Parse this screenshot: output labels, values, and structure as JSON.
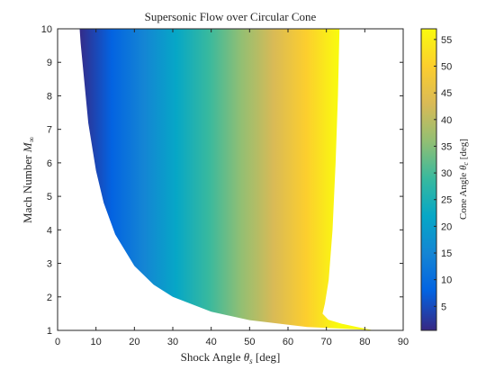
{
  "chart_data": {
    "type": "heatmap",
    "title": "Supersonic Flow over Circular Cone",
    "xlabel_main": "Shock Angle ",
    "xlabel_sym": "θ",
    "xlabel_sub": "s",
    "xlabel_unit": " [deg]",
    "ylabel_main": "Mach Number ",
    "ylabel_sym": "M",
    "ylabel_sub": "∞",
    "colorbar_label_main": "Cone Angle ",
    "colorbar_label_sym": "θ",
    "colorbar_label_sub": "c",
    "colorbar_label_unit": " [deg]",
    "xlim": [
      0,
      90
    ],
    "ylim": [
      1,
      10
    ],
    "xticks": [
      0,
      10,
      20,
      30,
      40,
      50,
      60,
      70,
      80,
      90
    ],
    "yticks": [
      1,
      2,
      3,
      4,
      5,
      6,
      7,
      8,
      9,
      10
    ],
    "colorbar_range": [
      0.5,
      57
    ],
    "colorbar_ticks": [
      5,
      10,
      15,
      20,
      25,
      30,
      35,
      40,
      45,
      50,
      55
    ],
    "colormap": "parula",
    "colormap_stops": [
      "#352a87",
      "#0363e1",
      "#1485d4",
      "#06a7c6",
      "#38b99e",
      "#92bf73",
      "#d9ba56",
      "#fcce2e",
      "#f9fb0e"
    ],
    "grid": false,
    "boundary_left_mach_angle": [
      {
        "x": 81.9,
        "y": 1.01
      },
      {
        "x": 65,
        "y": 1.103
      },
      {
        "x": 50,
        "y": 1.305
      },
      {
        "x": 40,
        "y": 1.556
      },
      {
        "x": 30,
        "y": 2.0
      },
      {
        "x": 25,
        "y": 2.366
      },
      {
        "x": 20,
        "y": 2.924
      },
      {
        "x": 15,
        "y": 3.864
      },
      {
        "x": 12,
        "y": 4.81
      },
      {
        "x": 10,
        "y": 5.76
      },
      {
        "x": 8,
        "y": 7.19
      },
      {
        "x": 6,
        "y": 9.57
      },
      {
        "x": 5.74,
        "y": 10
      }
    ],
    "boundary_right_detachment": [
      {
        "x": 73.4,
        "y": 10
      },
      {
        "x": 73.0,
        "y": 8
      },
      {
        "x": 72.4,
        "y": 6
      },
      {
        "x": 71.6,
        "y": 4
      },
      {
        "x": 70.6,
        "y": 2.5
      },
      {
        "x": 69.6,
        "y": 1.8
      },
      {
        "x": 69.0,
        "y": 1.5
      },
      {
        "x": 70.5,
        "y": 1.32
      },
      {
        "x": 74,
        "y": 1.2
      },
      {
        "x": 78,
        "y": 1.1
      },
      {
        "x": 81.9,
        "y": 1.01
      }
    ]
  }
}
